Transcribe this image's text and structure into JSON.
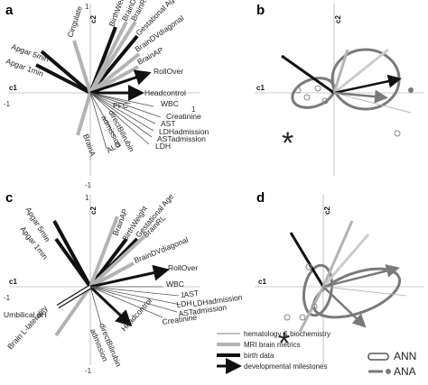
{
  "panels": {
    "a": {
      "letter": "a",
      "axis_c1": "c1",
      "axis_c2": "c2",
      "tick_top": "1",
      "tick_left": "-1",
      "tick_right": "1",
      "tick_bottom": "-1",
      "labels": {
        "apgar5": "Apgar 5min",
        "apgar1": "Apgar 1min",
        "cingulate": "Cingulate",
        "birthweight": "BirthWeight",
        "braindv": "BrainDV",
        "brainrl": "BrainRL",
        "gestage": "Gestational Age",
        "braindvdiag": "BrainDVdiagonal",
        "brainap": "BrainAP",
        "rollover": "RollOver",
        "headcontrol": "Headcontrol",
        "pfc": "PFC",
        "wbc": "WBC",
        "creatinine": "Creatinine",
        "ast": "AST",
        "ldhadm": "LDHadmission",
        "astadm": "ASTadmission",
        "ldh": "LDH",
        "bilirubin1": "directBilirubin",
        "bilirubin2": "admission",
        "braina": "BrainA",
        "alg": "ALG"
      }
    },
    "b": {
      "letter": "b",
      "axis_c1": "c1",
      "axis_c2": "c2",
      "star": "*"
    },
    "c": {
      "letter": "c",
      "axis_c1": "c1",
      "axis_c2": "c2",
      "tick_top": "1",
      "tick_left": "-1",
      "tick_right": "1",
      "tick_bottom": "-1",
      "labels": {
        "apgar5": "Apgar 5min",
        "apgar1": "Apgar 1min",
        "brainap": "BrainAP",
        "birthweight": "BirthWeight",
        "gestage": "Gestational Age",
        "brainrl": "BrainRL",
        "braindvdiag": "BrainDVdiagonal",
        "rollover": "RollOver",
        "wbc": "WBC",
        "ast": "AST",
        "ldh": "LDH",
        "ldhadm": "LDHadmission",
        "astadm": "ASTadmission",
        "creatinine": "Creatinine",
        "headcontrol": "Headcontrol",
        "bilirubin1": "directBilirubin",
        "bilirubin2": "admission",
        "umbph": "Umbilical pH",
        "brainlat": "Brain L-laterality"
      }
    },
    "d": {
      "letter": "d",
      "axis_c1": "c1",
      "axis_c2": "c2",
      "star": "*"
    }
  },
  "legend": {
    "hemato": "hematology & biochemistry",
    "mri": "MRI brain metrics",
    "birth": "birth data",
    "milestones": "developmental milestones",
    "ann": "ANN",
    "ana": "ANA"
  },
  "colors": {
    "black": "#111111",
    "gray": "#b3b3b3",
    "dark_gray": "#7a7a7a",
    "thin": "#555555"
  }
}
